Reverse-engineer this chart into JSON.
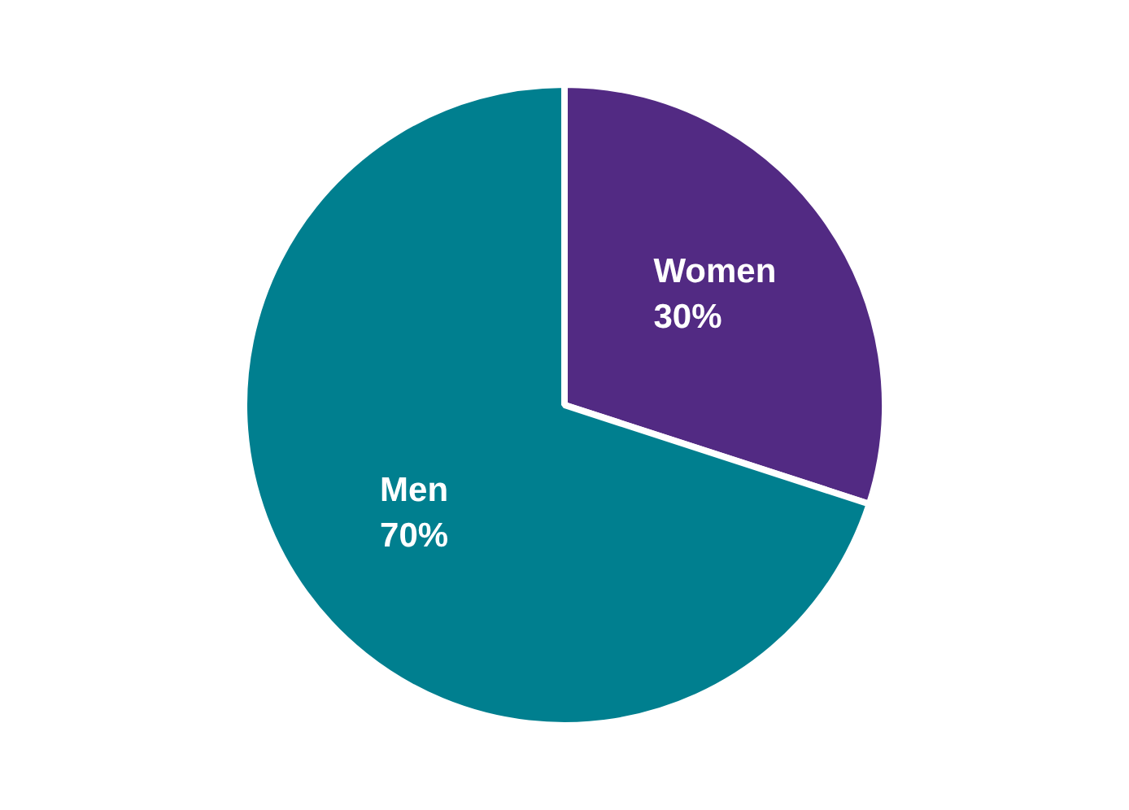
{
  "chart_data": {
    "type": "pie",
    "categories": [
      "Women",
      "Men"
    ],
    "values": [
      30,
      70
    ],
    "colors": [
      "#522a83",
      "#007f8f"
    ],
    "value_labels": [
      "30%",
      "70%"
    ],
    "legend": false
  }
}
